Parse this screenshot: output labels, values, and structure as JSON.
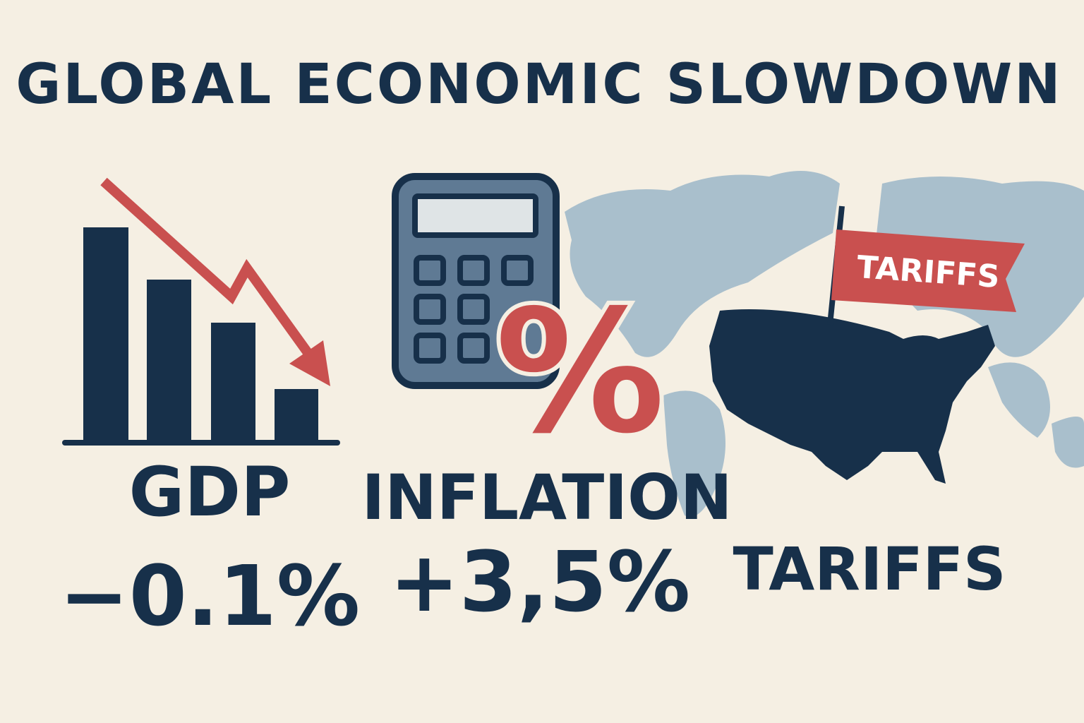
{
  "header": {
    "title": "GLOBAL ECONOMIC SLOWDOWN"
  },
  "panels": [
    {
      "label": "GDP",
      "value": "−0.1%"
    },
    {
      "label": "INFLATION",
      "value": "+3,5%",
      "icon_text": "%"
    },
    {
      "label": "TARIFFS",
      "flag_text": "TARIFFS"
    }
  ]
}
